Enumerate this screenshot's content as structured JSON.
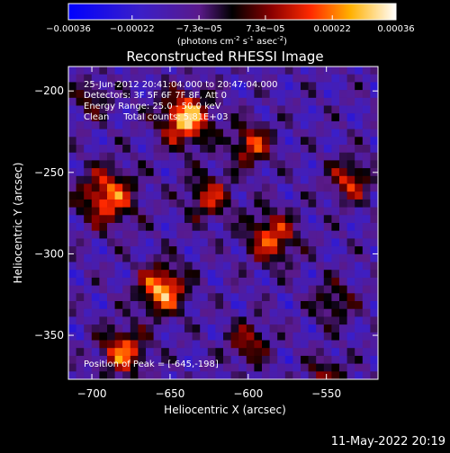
{
  "chart_data": {
    "type": "heatmap",
    "title": "Reconstructed RHESSI Image",
    "xlabel": "Heliocentric X (arcsec)",
    "ylabel": "Heliocentric Y (arcsec)",
    "xlim": [
      -715,
      -517
    ],
    "ylim": [
      -377,
      -185
    ],
    "x_ticks": [
      -700,
      -650,
      -600,
      -550
    ],
    "y_ticks": [
      -200,
      -250,
      -300,
      -350
    ],
    "grid": false,
    "colorbar": {
      "ticks": [
        {
          "value": -0.00036,
          "label": "-0.00036"
        },
        {
          "value": -0.00022,
          "label": "-0.00022"
        },
        {
          "value": -7.3e-05,
          "label": "-7.3e-05"
        },
        {
          "value": 7.3e-05,
          "label": "7.3e-05"
        },
        {
          "value": 0.00022,
          "label": "0.00022"
        },
        {
          "value": 0.00036,
          "label": "0.00036"
        }
      ],
      "range": [
        -0.00036,
        0.00036
      ],
      "unit_text": "(photons cm",
      "unit_sup1": "-2",
      "unit_s": " s",
      "unit_sup2": "-1",
      "unit_end": " asec",
      "unit_sup3": "-2",
      "unit_close": ")"
    },
    "info_lines": [
      "25-Jun-2012 20:41:04.000 to 20:47:04.000",
      "Detectors: 3F 5F 6F 7F 8F, Att 0",
      "Energy Range: 25.0 - 50.0 keV",
      "Clean     Total counts: 5.81E+03"
    ],
    "peak_text": "Position of Peak = [-645,-198]",
    "peak": [
      -645,
      -198
    ],
    "sources": [
      {
        "x": -640,
        "y": -217,
        "amp": 1.05,
        "sigma": 11
      },
      {
        "x": -655,
        "y": -322,
        "amp": 1.0,
        "sigma": 10
      },
      {
        "x": -690,
        "y": -265,
        "amp": 0.85,
        "sigma": 12
      },
      {
        "x": -598,
        "y": -233,
        "amp": 0.7,
        "sigma": 9
      },
      {
        "x": -585,
        "y": -290,
        "amp": 0.75,
        "sigma": 11
      },
      {
        "x": -535,
        "y": -255,
        "amp": 0.65,
        "sigma": 9
      },
      {
        "x": -680,
        "y": -360,
        "amp": 0.8,
        "sigma": 10
      },
      {
        "x": -625,
        "y": -265,
        "amp": 0.6,
        "sigma": 10
      },
      {
        "x": -600,
        "y": -355,
        "amp": 0.55,
        "sigma": 9
      },
      {
        "x": -545,
        "y": -330,
        "amp": 0.45,
        "sigma": 9
      },
      {
        "x": -700,
        "y": -205,
        "amp": 0.4,
        "sigma": 8
      },
      {
        "x": -550,
        "y": -375,
        "amp": 0.5,
        "sigma": 8
      }
    ]
  },
  "footer": {
    "timestamp": "11-May-2022 20:19"
  }
}
